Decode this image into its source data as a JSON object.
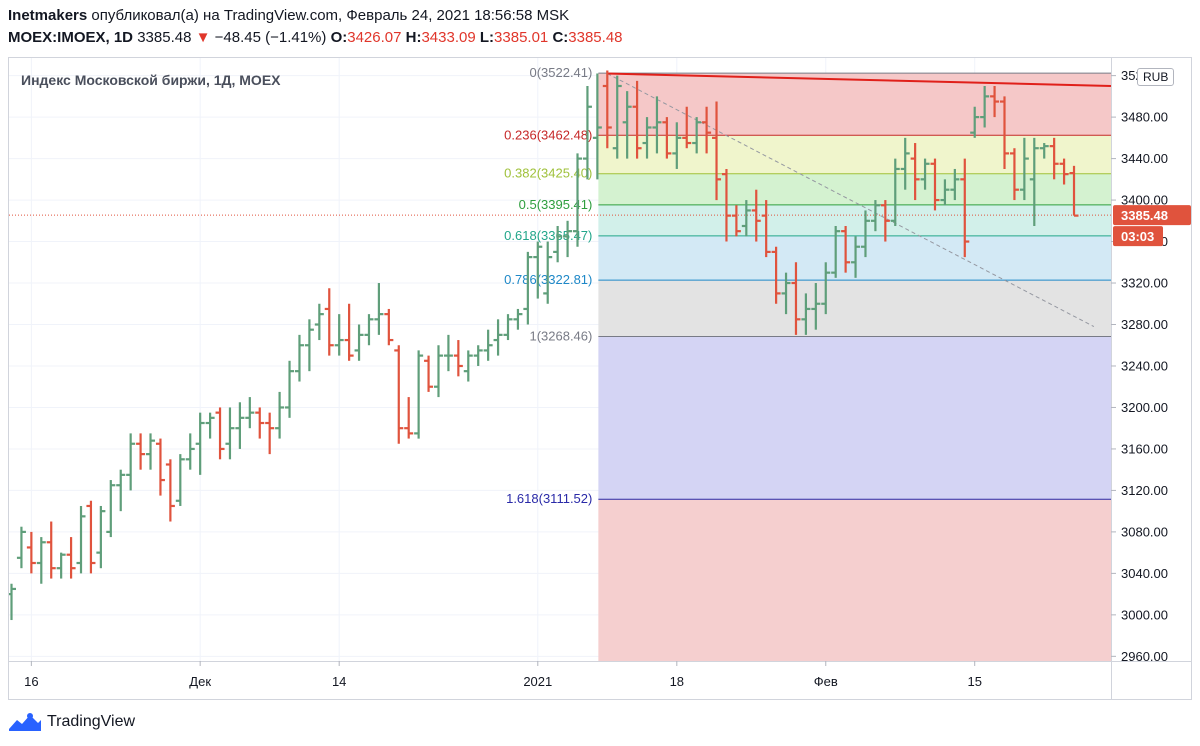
{
  "header": {
    "author": "Inetmakers",
    "published_text": "опубликовал(а) на TradingView.com, Февраль 24, 2021 18:56:58 MSK",
    "symbol": "MOEX:IMOEX, 1D",
    "last": "3385.48",
    "change_arrow": "▼",
    "change": "−48.45 (−1.41%)",
    "o_label": "O:",
    "o_value": "3426.07",
    "h_label": "H:",
    "h_value": "3433.09",
    "l_label": "L:",
    "l_value": "3385.01",
    "c_label": "C:",
    "c_value": "3385.48"
  },
  "footer": {
    "brand": "TradingView",
    "logo_icon": "tradingview-logo-icon"
  },
  "colors": {
    "up": "#5f9e7a",
    "down": "#e0533d",
    "trendline": "#e0201a",
    "price_label_bg": "#e0533d",
    "grid": "#f0f3fa",
    "axis_text": "#131722"
  },
  "chart_data": {
    "type": "ohlc",
    "title": "Индекс Московской биржи, 1Д, MOEX",
    "currency": "RUB",
    "ylim": [
      2950,
      3540
    ],
    "y_ticks": [
      2960,
      3000,
      3040,
      3080,
      3120,
      3160,
      3200,
      3240,
      3280,
      3320,
      3360,
      3400,
      3440,
      3480,
      3520
    ],
    "y_tick_labels": [
      "2960.00",
      "3000.00",
      "3040.00",
      "3080.00",
      "3120.00",
      "3160.00",
      "3200.00",
      "3240.00",
      "3280.00",
      "3320.00",
      "3360.00",
      "3400.00",
      "3440.00",
      "3480.00",
      "3520.00"
    ],
    "x_labels": [
      {
        "index": 2,
        "label": "16"
      },
      {
        "index": 19,
        "label": "Дек"
      },
      {
        "index": 33,
        "label": "14"
      },
      {
        "index": 53,
        "label": "2021"
      },
      {
        "index": 67,
        "label": "18"
      },
      {
        "index": 82,
        "label": "Фев"
      },
      {
        "index": 97,
        "label": "15"
      }
    ],
    "last_price_label": "3385.48",
    "countdown_label": "03:03",
    "last_price_line": 3385.48,
    "fibonacci": {
      "start_index": 59,
      "levels": [
        {
          "ratio": "0",
          "price": 3522.41,
          "label": "0(3522.41)",
          "color": "#787b86",
          "fill": "#f5c8c8"
        },
        {
          "ratio": "0.236",
          "price": 3462.48,
          "label": "0.236(3462.48)",
          "color": "#c62828",
          "fill": "#f0f5cc"
        },
        {
          "ratio": "0.382",
          "price": 3425.4,
          "label": "0.382(3425.40)",
          "color": "#9fc13a",
          "fill": "#d4f2d0"
        },
        {
          "ratio": "0.5",
          "price": 3395.41,
          "label": "0.5(3395.41)",
          "color": "#2e9e3e",
          "fill": "#d2f0ea"
        },
        {
          "ratio": "0.618",
          "price": 3365.47,
          "label": "0.618(3365.47)",
          "color": "#22a68a",
          "fill": "#d3e9f5"
        },
        {
          "ratio": "0.786",
          "price": 3322.81,
          "label": "0.786(3322.81)",
          "color": "#1e88c7",
          "fill": "#e3e3e3"
        },
        {
          "ratio": "1",
          "price": 3268.46,
          "label": "1(3268.46)",
          "color": "#787b86",
          "fill": "#d4d4f4"
        },
        {
          "ratio": "1.618",
          "price": 3111.52,
          "label": "1.618(3111.52)",
          "color": "#2a2aa8",
          "fill": "#f5cfcf"
        }
      ]
    },
    "trendline": {
      "x1": 60,
      "y1": 3522,
      "x2": 109,
      "y2": 3510
    },
    "dashed_line": {
      "x1": 60,
      "y1": 3522,
      "x2": 109,
      "y2": 3278
    },
    "bars": [
      [
        3020,
        3030,
        2995,
        3025
      ],
      [
        3055,
        3085,
        3045,
        3080
      ],
      [
        3065,
        3080,
        3040,
        3050
      ],
      [
        3050,
        3075,
        3030,
        3070
      ],
      [
        3070,
        3090,
        3035,
        3045
      ],
      [
        3045,
        3060,
        3035,
        3058
      ],
      [
        3058,
        3075,
        3035,
        3045
      ],
      [
        3050,
        3105,
        3040,
        3095
      ],
      [
        3105,
        3110,
        3040,
        3050
      ],
      [
        3060,
        3105,
        3045,
        3100
      ],
      [
        3080,
        3130,
        3075,
        3125
      ],
      [
        3125,
        3140,
        3100,
        3135
      ],
      [
        3135,
        3175,
        3120,
        3165
      ],
      [
        3165,
        3175,
        3140,
        3155
      ],
      [
        3155,
        3175,
        3140,
        3168
      ],
      [
        3165,
        3170,
        3115,
        3130
      ],
      [
        3145,
        3150,
        3090,
        3105
      ],
      [
        3110,
        3155,
        3105,
        3150
      ],
      [
        3150,
        3175,
        3140,
        3160
      ],
      [
        3165,
        3195,
        3135,
        3185
      ],
      [
        3185,
        3195,
        3170,
        3190
      ],
      [
        3195,
        3200,
        3150,
        3160
      ],
      [
        3165,
        3200,
        3150,
        3180
      ],
      [
        3180,
        3205,
        3160,
        3190
      ],
      [
        3190,
        3210,
        3180,
        3195
      ],
      [
        3195,
        3200,
        3170,
        3185
      ],
      [
        3185,
        3195,
        3155,
        3180
      ],
      [
        3180,
        3215,
        3170,
        3200
      ],
      [
        3200,
        3245,
        3190,
        3235
      ],
      [
        3235,
        3270,
        3225,
        3260
      ],
      [
        3260,
        3285,
        3235,
        3275
      ],
      [
        3280,
        3300,
        3265,
        3290
      ],
      [
        3295,
        3315,
        3250,
        3260
      ],
      [
        3260,
        3290,
        3250,
        3265
      ],
      [
        3265,
        3300,
        3245,
        3250
      ],
      [
        3255,
        3280,
        3245,
        3270
      ],
      [
        3270,
        3290,
        3260,
        3285
      ],
      [
        3285,
        3320,
        3270,
        3290
      ],
      [
        3290,
        3295,
        3260,
        3265
      ],
      [
        3255,
        3260,
        3165,
        3180
      ],
      [
        3180,
        3210,
        3170,
        3175
      ],
      [
        3175,
        3255,
        3170,
        3250
      ],
      [
        3245,
        3250,
        3215,
        3220
      ],
      [
        3220,
        3260,
        3210,
        3250
      ],
      [
        3250,
        3270,
        3235,
        3250
      ],
      [
        3250,
        3265,
        3230,
        3240
      ],
      [
        3235,
        3255,
        3225,
        3250
      ],
      [
        3250,
        3260,
        3240,
        3255
      ],
      [
        3255,
        3275,
        3245,
        3260
      ],
      [
        3265,
        3285,
        3250,
        3270
      ],
      [
        3270,
        3290,
        3265,
        3285
      ],
      [
        3285,
        3295,
        3275,
        3290
      ],
      [
        3295,
        3350,
        3280,
        3345
      ],
      [
        3345,
        3360,
        3305,
        3355
      ],
      [
        3310,
        3360,
        3300,
        3345
      ],
      [
        3350,
        3375,
        3340,
        3365
      ],
      [
        3365,
        3380,
        3345,
        3370
      ],
      [
        3370,
        3445,
        3355,
        3440
      ],
      [
        3440,
        3510,
        3420,
        3490
      ],
      [
        3460,
        3522,
        3420,
        3470
      ],
      [
        3510,
        3525,
        3450,
        3470
      ],
      [
        3450,
        3520,
        3440,
        3510
      ],
      [
        3475,
        3505,
        3440,
        3490
      ],
      [
        3490,
        3515,
        3440,
        3450
      ],
      [
        3455,
        3480,
        3440,
        3470
      ],
      [
        3470,
        3500,
        3445,
        3475
      ],
      [
        3475,
        3480,
        3440,
        3445
      ],
      [
        3445,
        3475,
        3430,
        3460
      ],
      [
        3460,
        3490,
        3450,
        3455
      ],
      [
        3455,
        3480,
        3445,
        3475
      ],
      [
        3475,
        3490,
        3445,
        3465
      ],
      [
        3460,
        3495,
        3400,
        3420
      ],
      [
        3425,
        3430,
        3360,
        3385
      ],
      [
        3385,
        3395,
        3365,
        3370
      ],
      [
        3375,
        3400,
        3365,
        3390
      ],
      [
        3390,
        3410,
        3360,
        3380
      ],
      [
        3385,
        3400,
        3345,
        3350
      ],
      [
        3350,
        3355,
        3300,
        3310
      ],
      [
        3310,
        3330,
        3290,
        3320
      ],
      [
        3320,
        3340,
        3270,
        3285
      ],
      [
        3285,
        3310,
        3270,
        3295
      ],
      [
        3295,
        3320,
        3275,
        3300
      ],
      [
        3300,
        3340,
        3290,
        3330
      ],
      [
        3330,
        3375,
        3325,
        3370
      ],
      [
        3370,
        3375,
        3330,
        3340
      ],
      [
        3340,
        3365,
        3325,
        3355
      ],
      [
        3355,
        3390,
        3345,
        3380
      ],
      [
        3380,
        3400,
        3370,
        3395
      ],
      [
        3395,
        3400,
        3360,
        3380
      ],
      [
        3380,
        3440,
        3375,
        3430
      ],
      [
        3430,
        3460,
        3410,
        3445
      ],
      [
        3440,
        3455,
        3400,
        3420
      ],
      [
        3420,
        3440,
        3410,
        3435
      ],
      [
        3435,
        3440,
        3390,
        3400
      ],
      [
        3400,
        3420,
        3395,
        3410
      ],
      [
        3410,
        3430,
        3400,
        3420
      ],
      [
        3420,
        3440,
        3345,
        3360
      ],
      [
        3465,
        3490,
        3460,
        3480
      ],
      [
        3480,
        3510,
        3470,
        3500
      ],
      [
        3500,
        3510,
        3480,
        3495
      ],
      [
        3495,
        3500,
        3430,
        3445
      ],
      [
        3445,
        3450,
        3400,
        3410
      ],
      [
        3410,
        3460,
        3400,
        3440
      ],
      [
        3420,
        3460,
        3375,
        3450
      ],
      [
        3450,
        3455,
        3440,
        3452
      ],
      [
        3452,
        3460,
        3420,
        3435
      ],
      [
        3435,
        3440,
        3415,
        3425
      ],
      [
        3426,
        3433,
        3385,
        3385
      ]
    ]
  }
}
